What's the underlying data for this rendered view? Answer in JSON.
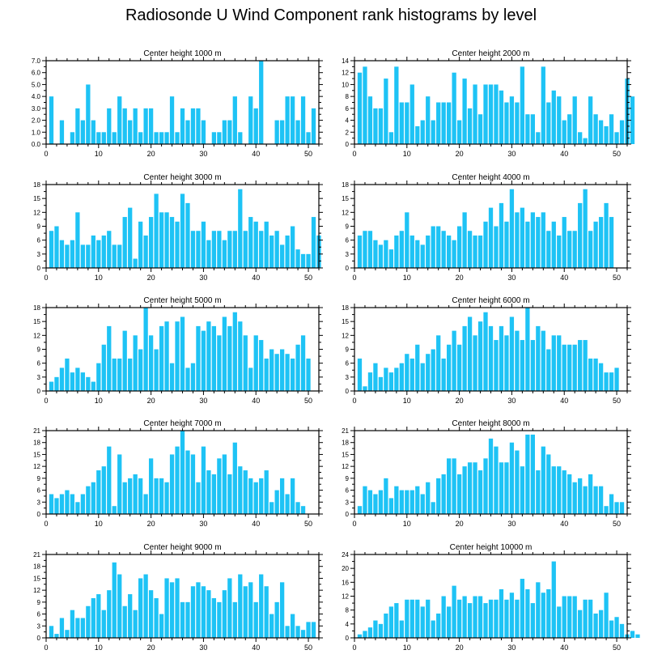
{
  "figure": {
    "title": "Radiosonde U Wind Component rank histograms by level",
    "bar_color": "#1ec3f5",
    "axis_color": "#000000"
  },
  "chart_data": [
    {
      "type": "bar",
      "title": "Center height 1000 m",
      "ylim": [
        0,
        7
      ],
      "yticks": [
        "0.0",
        "1.0",
        "2.0",
        "3.0",
        "4.0",
        "5.0",
        "6.0",
        "7.0"
      ],
      "xticks": [
        "0",
        "10",
        "20",
        "30",
        "40",
        "50"
      ],
      "values": [
        4,
        0,
        2,
        0,
        1,
        3,
        2,
        5,
        2,
        1,
        1,
        3,
        1,
        4,
        3,
        2,
        3,
        1,
        3,
        3,
        1,
        1,
        1,
        4,
        1,
        3,
        2,
        3,
        3,
        2,
        0,
        1,
        1,
        2,
        2,
        4,
        1,
        0,
        4,
        3,
        7,
        0,
        0,
        2,
        2,
        4,
        4,
        2,
        4,
        1,
        3
      ]
    },
    {
      "type": "bar",
      "title": "Center height 2000 m",
      "ylim": [
        0,
        14
      ],
      "yticks": [
        "0",
        "2",
        "4",
        "6",
        "8",
        "10",
        "12",
        "14"
      ],
      "xticks": [
        "0",
        "10",
        "20",
        "30",
        "40",
        "50"
      ],
      "values": [
        12,
        13,
        8,
        6,
        6,
        11,
        2,
        13,
        7,
        7,
        10,
        3,
        4,
        8,
        4,
        7,
        7,
        7,
        12,
        4,
        11,
        6,
        10,
        5,
        10,
        10,
        10,
        9,
        7,
        8,
        7,
        13,
        5,
        5,
        2,
        13,
        7,
        9,
        8,
        4,
        5,
        8,
        2,
        1,
        8,
        5,
        4,
        3,
        5,
        2,
        4,
        11,
        8
      ]
    },
    {
      "type": "bar",
      "title": "Center height 3000 m",
      "ylim": [
        0,
        18
      ],
      "yticks": [
        "0",
        "3",
        "6",
        "9",
        "12",
        "15",
        "18"
      ],
      "xticks": [
        "0",
        "10",
        "20",
        "30",
        "40",
        "50"
      ],
      "values": [
        8,
        9,
        6,
        5,
        6,
        12,
        5,
        5,
        7,
        6,
        7,
        8,
        5,
        5,
        11,
        13,
        2,
        10,
        7,
        11,
        16,
        12,
        12,
        11,
        10,
        16,
        14,
        8,
        8,
        10,
        6,
        8,
        8,
        6,
        8,
        8,
        17,
        8,
        11,
        10,
        8,
        10,
        7,
        8,
        5,
        7,
        9,
        4,
        3,
        3,
        11,
        7
      ]
    },
    {
      "type": "bar",
      "title": "Center height 4000 m",
      "ylim": [
        0,
        18
      ],
      "yticks": [
        "0",
        "3",
        "6",
        "9",
        "12",
        "15",
        "18"
      ],
      "xticks": [
        "0",
        "10",
        "20",
        "30",
        "40",
        "50"
      ],
      "values": [
        7,
        8,
        8,
        6,
        5,
        6,
        4,
        7,
        8,
        12,
        7,
        6,
        5,
        7,
        9,
        9,
        8,
        7,
        6,
        9,
        12,
        8,
        7,
        7,
        10,
        13,
        9,
        14,
        10,
        17,
        12,
        13,
        10,
        12,
        11,
        12,
        8,
        10,
        7,
        11,
        8,
        8,
        14,
        17,
        8,
        10,
        11,
        14,
        11
      ]
    },
    {
      "type": "bar",
      "title": "Center height 5000 m",
      "ylim": [
        0,
        18
      ],
      "yticks": [
        "0",
        "3",
        "6",
        "9",
        "12",
        "15",
        "18"
      ],
      "xticks": [
        "0",
        "10",
        "20",
        "30",
        "40",
        "50"
      ],
      "values": [
        2,
        3,
        5,
        7,
        4,
        5,
        4,
        3,
        2,
        6,
        10,
        14,
        7,
        7,
        13,
        7,
        12,
        9,
        18,
        12,
        9,
        14,
        15,
        6,
        15,
        16,
        5,
        6,
        14,
        13,
        15,
        14,
        12,
        16,
        14,
        17,
        15,
        12,
        5,
        12,
        11,
        7,
        9,
        8,
        9,
        8,
        7,
        10,
        12,
        7
      ]
    },
    {
      "type": "bar",
      "title": "Center height 6000 m",
      "ylim": [
        0,
        18
      ],
      "yticks": [
        "0",
        "3",
        "6",
        "9",
        "12",
        "15",
        "18"
      ],
      "xticks": [
        "0",
        "10",
        "20",
        "30",
        "40",
        "50"
      ],
      "values": [
        7,
        1,
        4,
        6,
        3,
        5,
        4,
        5,
        6,
        8,
        7,
        10,
        6,
        8,
        9,
        12,
        7,
        10,
        13,
        10,
        14,
        16,
        12,
        15,
        17,
        14,
        11,
        14,
        12,
        16,
        13,
        11,
        18,
        11,
        14,
        13,
        9,
        12,
        12,
        10,
        10,
        10,
        11,
        11,
        7,
        7,
        6,
        4,
        4,
        5
      ]
    },
    {
      "type": "bar",
      "title": "Center height 7000 m",
      "ylim": [
        0,
        21
      ],
      "yticks": [
        "0",
        "3",
        "6",
        "9",
        "12",
        "15",
        "18",
        "21"
      ],
      "xticks": [
        "0",
        "10",
        "20",
        "30",
        "40",
        "50"
      ],
      "values": [
        5,
        4,
        5,
        6,
        5,
        3,
        5,
        7,
        8,
        11,
        12,
        17,
        2,
        15,
        8,
        9,
        10,
        9,
        5,
        14,
        9,
        9,
        8,
        15,
        17,
        21,
        16,
        15,
        8,
        17,
        11,
        10,
        14,
        15,
        10,
        18,
        12,
        11,
        9,
        8,
        9,
        11,
        3,
        6,
        9,
        5,
        9,
        3,
        2
      ]
    },
    {
      "type": "bar",
      "title": "Center height 8000 m",
      "ylim": [
        0,
        21
      ],
      "yticks": [
        "0",
        "3",
        "6",
        "9",
        "12",
        "15",
        "18",
        "21"
      ],
      "xticks": [
        "0",
        "10",
        "20",
        "30",
        "40",
        "50"
      ],
      "values": [
        2,
        7,
        6,
        5,
        6,
        9,
        4,
        7,
        6,
        6,
        6,
        7,
        5,
        8,
        3,
        9,
        10,
        14,
        14,
        10,
        12,
        13,
        13,
        11,
        14,
        19,
        17,
        13,
        13,
        18,
        16,
        12,
        20,
        20,
        11,
        17,
        15,
        12,
        12,
        11,
        10,
        8,
        9,
        7,
        10,
        7,
        7,
        2,
        5,
        3,
        3
      ]
    },
    {
      "type": "bar",
      "title": "Center height 9000 m",
      "ylim": [
        0,
        21
      ],
      "yticks": [
        "0",
        "3",
        "6",
        "9",
        "12",
        "15",
        "18",
        "21"
      ],
      "xticks": [
        "0",
        "10",
        "20",
        "30",
        "40",
        "50"
      ],
      "values": [
        3,
        1,
        5,
        2,
        7,
        5,
        5,
        8,
        10,
        11,
        7,
        12,
        19,
        16,
        8,
        11,
        7,
        15,
        16,
        12,
        10,
        6,
        15,
        14,
        15,
        9,
        9,
        13,
        14,
        13,
        12,
        10,
        9,
        12,
        15,
        9,
        16,
        13,
        14,
        9,
        16,
        13,
        6,
        9,
        14,
        3,
        6,
        3,
        2,
        4,
        4
      ]
    },
    {
      "type": "bar",
      "title": "Center height 10000 m",
      "ylim": [
        0,
        24
      ],
      "yticks": [
        "0",
        "4",
        "8",
        "12",
        "16",
        "20",
        "24"
      ],
      "xticks": [
        "0",
        "10",
        "20",
        "30",
        "40",
        "50"
      ],
      "values": [
        1,
        2,
        3,
        5,
        4,
        7,
        9,
        10,
        5,
        11,
        11,
        11,
        9,
        11,
        5,
        7,
        12,
        9,
        15,
        11,
        12,
        10,
        12,
        12,
        10,
        11,
        11,
        14,
        11,
        13,
        11,
        17,
        14,
        10,
        16,
        13,
        14,
        22,
        9,
        12,
        12,
        12,
        8,
        11,
        11,
        7,
        8,
        13,
        5,
        6,
        4,
        1,
        2,
        1
      ]
    }
  ]
}
